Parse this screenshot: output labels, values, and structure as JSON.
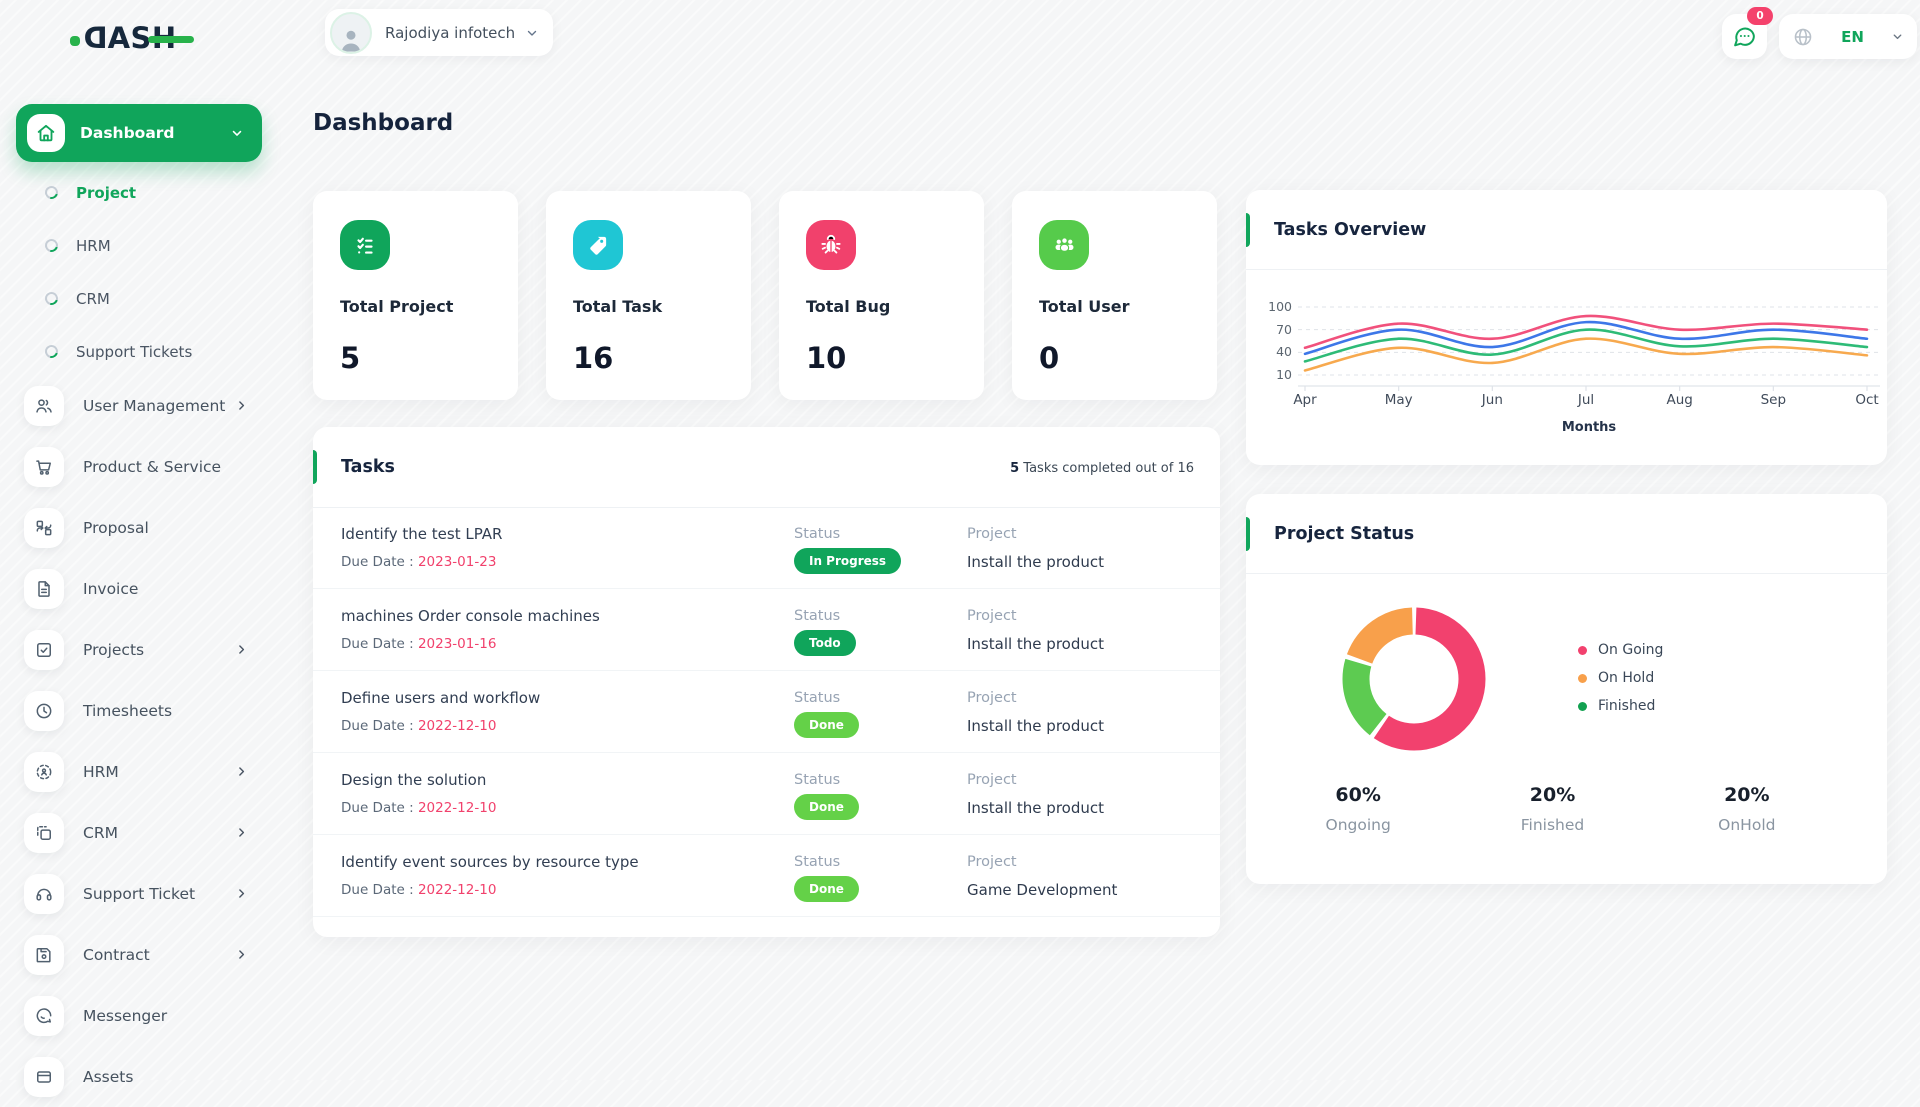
{
  "brand": {
    "logo": "DASH",
    "logo_dark": "#16283c",
    "logo_green": "#28b24b"
  },
  "header": {
    "workspace": "Rajodiya infotech",
    "page_title": "Dashboard",
    "chat_badge": "0",
    "language": "EN"
  },
  "colors": {
    "primary_green": "#10a55b",
    "light_green": "#64d148",
    "pink": "#f1416c",
    "cyan": "#1fc6d4",
    "user_green": "#56cb4b",
    "orange": "#f8a04b",
    "blue": "#3d77e8"
  },
  "sidebar": {
    "dashboard": {
      "label": "Dashboard"
    },
    "subitems": [
      {
        "label": "Project",
        "active": true
      },
      {
        "label": "HRM",
        "active": false
      },
      {
        "label": "CRM",
        "active": false
      },
      {
        "label": "Support Tickets",
        "active": false
      }
    ],
    "items": [
      {
        "label": "User Management",
        "icon": "users-icon",
        "chevron": true
      },
      {
        "label": "Product & Service",
        "icon": "cart-icon",
        "chevron": false
      },
      {
        "label": "Proposal",
        "icon": "proposal-icon",
        "chevron": false
      },
      {
        "label": "Invoice",
        "icon": "invoice-icon",
        "chevron": false
      },
      {
        "label": "Projects",
        "icon": "check-square-icon",
        "chevron": true
      },
      {
        "label": "Timesheets",
        "icon": "clock-icon",
        "chevron": false
      },
      {
        "label": "HRM",
        "icon": "scan-icon",
        "chevron": true
      },
      {
        "label": "CRM",
        "icon": "layers-icon",
        "chevron": true
      },
      {
        "label": "Support Ticket",
        "icon": "headset-icon",
        "chevron": true
      },
      {
        "label": "Contract",
        "icon": "save-icon",
        "chevron": true
      },
      {
        "label": "Messenger",
        "icon": "chat-icon",
        "chevron": false
      },
      {
        "label": "Assets",
        "icon": "asset-icon",
        "chevron": false
      }
    ]
  },
  "stats": [
    {
      "label": "Total Project",
      "value": "5",
      "icon": "checklist-icon",
      "color": "#10a55b"
    },
    {
      "label": "Total Task",
      "value": "16",
      "icon": "tag-icon",
      "color": "#1fc6d4"
    },
    {
      "label": "Total Bug",
      "value": "10",
      "icon": "bug-icon",
      "color": "#f1416c"
    },
    {
      "label": "Total User",
      "value": "0",
      "icon": "users-group-icon",
      "color": "#56cb4b"
    }
  ],
  "tasks": {
    "title": "Tasks",
    "summary_count": "5",
    "summary_text": " Tasks completed out of 16",
    "labels": {
      "status": "Status",
      "project": "Project",
      "due": "Due Date : "
    },
    "rows": [
      {
        "name": "Identify the test LPAR",
        "due": "2023-01-23",
        "status": "In Progress",
        "status_style": "green",
        "project": "Install the product"
      },
      {
        "name": "machines Order console machines",
        "due": "2023-01-16",
        "status": "Todo",
        "status_style": "green",
        "project": "Install the product"
      },
      {
        "name": "Define users and workflow",
        "due": "2022-12-10",
        "status": "Done",
        "status_style": "light",
        "project": "Install the product"
      },
      {
        "name": "Design the solution",
        "due": "2022-12-10",
        "status": "Done",
        "status_style": "light",
        "project": "Install the product"
      },
      {
        "name": "Identify event sources by resource type",
        "due": "2022-12-10",
        "status": "Done",
        "status_style": "light",
        "project": "Game Development"
      }
    ]
  },
  "chart_data": [
    {
      "type": "line",
      "title": "Tasks Overview",
      "xlabel": "Months",
      "ylabel": "",
      "x": [
        "Apr",
        "May",
        "Jun",
        "Jul",
        "Aug",
        "Sep",
        "Oct"
      ],
      "yticks": [
        10,
        40,
        70,
        100
      ],
      "ylim": [
        -7,
        110
      ],
      "grid": "dashed-horizontal",
      "legend_position": "none",
      "series": [
        {
          "name": "series-pink",
          "color": "#f1517c",
          "values": [
            46,
            78,
            58,
            88,
            70,
            78,
            70
          ]
        },
        {
          "name": "series-blue",
          "color": "#3d77e8",
          "values": [
            38,
            70,
            47,
            80,
            58,
            70,
            58
          ]
        },
        {
          "name": "series-green",
          "color": "#2ebb77",
          "values": [
            28,
            58,
            37,
            70,
            48,
            58,
            47
          ]
        },
        {
          "name": "series-orange",
          "color": "#f7a94e",
          "values": [
            16,
            46,
            26,
            58,
            38,
            47,
            36
          ]
        }
      ]
    },
    {
      "type": "pie",
      "title": "Project Status",
      "donut": true,
      "segments": [
        {
          "label": "On Going",
          "value": 60,
          "color": "#f2416e"
        },
        {
          "label": "Finished",
          "value": 20,
          "color": "#5dcb51"
        },
        {
          "label": "On Hold",
          "value": 20,
          "color": "#f8a04b"
        }
      ],
      "legend": [
        {
          "label": "On Going",
          "color": "#f2416e"
        },
        {
          "label": "On Hold",
          "color": "#f8a04b"
        },
        {
          "label": "Finished",
          "color": "#12a150"
        }
      ],
      "stats": [
        {
          "value": "60%",
          "label": "Ongoing"
        },
        {
          "value": "20%",
          "label": "Finished"
        },
        {
          "value": "20%",
          "label": "OnHold"
        }
      ]
    }
  ]
}
